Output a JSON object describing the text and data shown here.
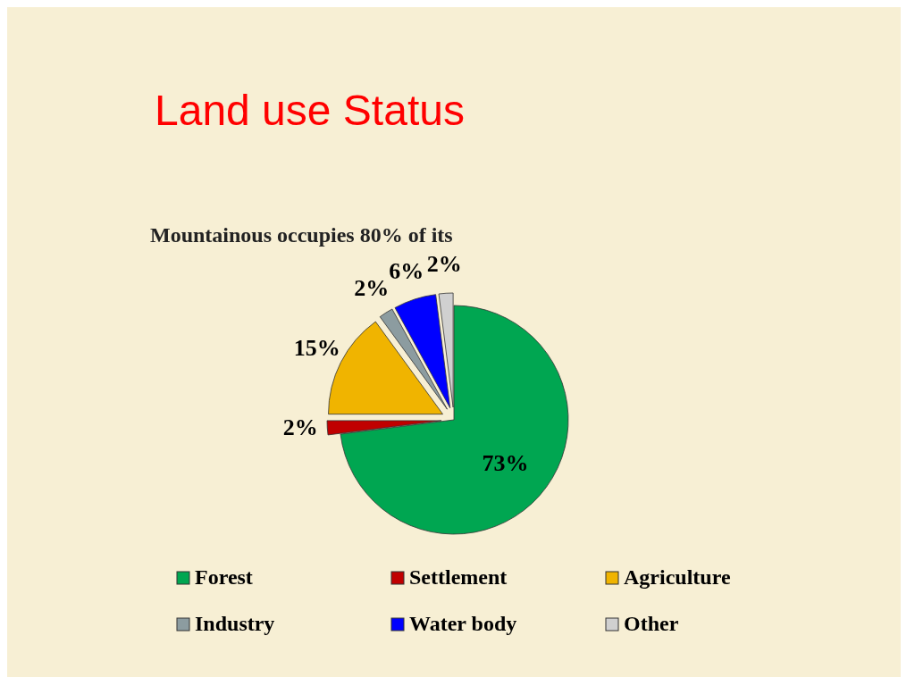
{
  "chart_data": {
    "type": "pie",
    "title": "Land use Status",
    "subtitle": "Mountainous occupies 80% of its",
    "categories": [
      "Forest",
      "Settlement",
      "Agriculture",
      "Industry",
      "Water body",
      "Other"
    ],
    "values": [
      73,
      2,
      15,
      2,
      6,
      2
    ],
    "value_labels": [
      "73%",
      "2%",
      "15%",
      "2%",
      "6%",
      "2%"
    ],
    "colors": [
      "#00a651",
      "#c00000",
      "#f0b400",
      "#8c9ca0",
      "#0000ff",
      "#d0d0d0"
    ],
    "legend": "bottom"
  }
}
